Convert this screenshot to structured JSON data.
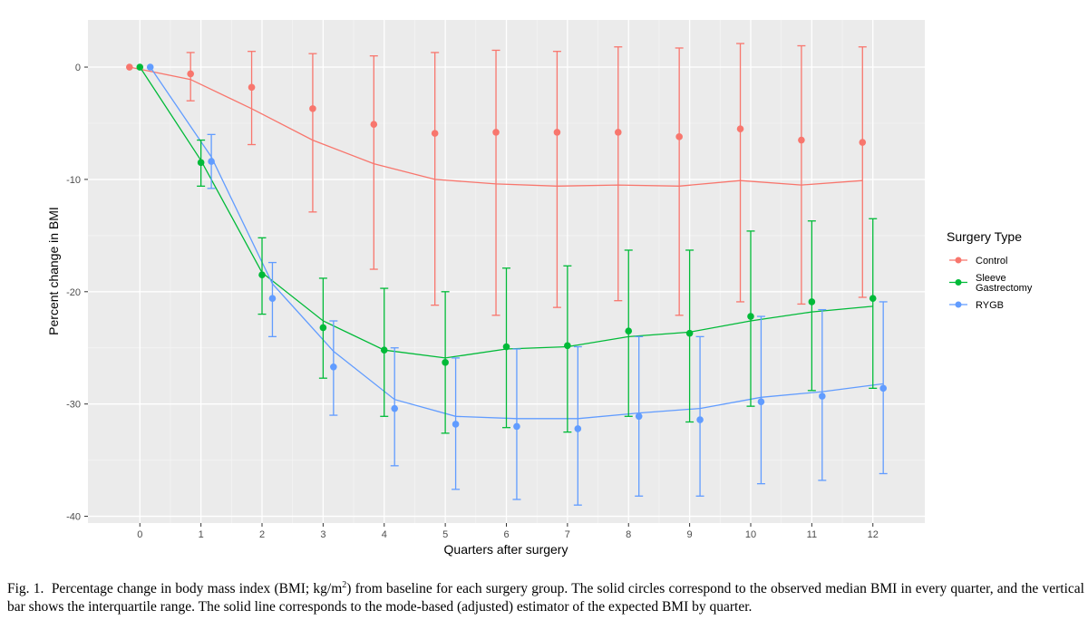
{
  "chart_data": {
    "type": "line",
    "xlabel": "Quarters after surgery",
    "ylabel": "Percent change in BMI",
    "xlim": [
      -0.85,
      12.85
    ],
    "ylim": [
      -40.6,
      4.2
    ],
    "x_ticks": [
      0,
      1,
      2,
      3,
      4,
      5,
      6,
      7,
      8,
      9,
      10,
      11,
      12
    ],
    "y_ticks": [
      0,
      -10,
      -20,
      -30,
      -40
    ],
    "grid": true,
    "legend": {
      "title": "Surgery Type",
      "position": "right"
    },
    "series": [
      {
        "name": "Control",
        "label_lines": [
          "Control"
        ],
        "color": "#F8766D",
        "x": [
          0,
          1,
          2,
          3,
          4,
          5,
          6,
          7,
          8,
          9,
          10,
          11,
          12
        ],
        "median": [
          0,
          -0.6,
          -1.8,
          -3.7,
          -5.1,
          -5.9,
          -5.8,
          -5.8,
          -5.8,
          -6.2,
          -5.5,
          -6.5,
          -6.7
        ],
        "q1": [
          0,
          -3.0,
          -6.9,
          -12.9,
          -18.0,
          -21.2,
          -22.1,
          -21.4,
          -20.8,
          -22.1,
          -20.9,
          -21.1,
          -20.5
        ],
        "q3": [
          0,
          1.3,
          1.4,
          1.2,
          1.0,
          1.3,
          1.5,
          1.4,
          1.8,
          1.7,
          2.1,
          1.9,
          1.8
        ],
        "fitted": [
          0,
          -1.1,
          -3.7,
          -6.5,
          -8.6,
          -10.0,
          -10.4,
          -10.6,
          -10.5,
          -10.6,
          -10.1,
          -10.5,
          -10.1
        ]
      },
      {
        "name": "Sleeve Gastrectomy",
        "label_lines": [
          "Sleeve",
          "Gastrectomy"
        ],
        "color": "#00BA38",
        "x": [
          0,
          1,
          2,
          3,
          4,
          5,
          6,
          7,
          8,
          9,
          10,
          11,
          12
        ],
        "median": [
          0,
          -8.5,
          -18.5,
          -23.2,
          -25.2,
          -26.3,
          -24.9,
          -24.8,
          -23.5,
          -23.7,
          -22.2,
          -20.9,
          -20.6
        ],
        "q1": [
          0,
          -10.6,
          -22.0,
          -27.7,
          -31.1,
          -32.6,
          -32.1,
          -32.5,
          -31.1,
          -31.6,
          -30.2,
          -28.8,
          -28.6
        ],
        "q3": [
          0,
          -6.5,
          -15.2,
          -18.8,
          -19.7,
          -20.0,
          -17.9,
          -17.7,
          -16.3,
          -16.3,
          -14.6,
          -13.7,
          -13.5
        ],
        "fitted": [
          0,
          -8.3,
          -18.3,
          -22.6,
          -25.2,
          -25.9,
          -25.1,
          -24.9,
          -24.0,
          -23.6,
          -22.6,
          -21.8,
          -21.3
        ]
      },
      {
        "name": "RYGB",
        "label_lines": [
          "RYGB"
        ],
        "color": "#619CFF",
        "x": [
          0,
          1,
          2,
          3,
          4,
          5,
          6,
          7,
          8,
          9,
          10,
          11,
          12
        ],
        "median": [
          0,
          -8.4,
          -20.6,
          -26.7,
          -30.4,
          -31.8,
          -32.0,
          -32.2,
          -31.1,
          -31.4,
          -29.8,
          -29.3,
          -28.6
        ],
        "q1": [
          0,
          -10.8,
          -24.0,
          -31.0,
          -35.5,
          -37.6,
          -38.5,
          -39.0,
          -38.2,
          -38.2,
          -37.1,
          -36.8,
          -36.2
        ],
        "q3": [
          0,
          -6.0,
          -17.4,
          -22.6,
          -25.0,
          -25.9,
          -25.1,
          -24.9,
          -24.0,
          -24.0,
          -22.2,
          -21.6,
          -20.9
        ],
        "fitted": [
          0,
          -8.0,
          -19.3,
          -25.3,
          -29.6,
          -31.1,
          -31.3,
          -31.3,
          -30.8,
          -30.4,
          -29.4,
          -28.9,
          -28.2
        ]
      }
    ]
  },
  "caption": {
    "fig_label": "Fig. 1.",
    "text_before_sup": "Percentage change in body mass index (BMI; kg/m",
    "sup": "2",
    "text_after_sup": ") from baseline for each surgery group. The solid circles correspond to the observed median BMI in every quarter, and the vertical bar shows the interquartile range. The solid line corresponds to the mode-based (adjusted) estimator of the expected BMI by quarter."
  }
}
